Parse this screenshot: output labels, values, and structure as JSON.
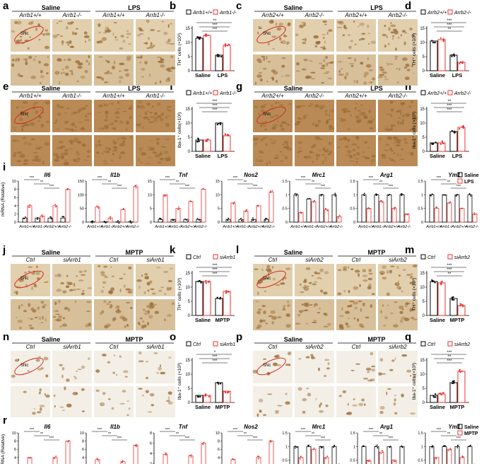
{
  "panel_letters": [
    "a",
    "b",
    "c",
    "d",
    "e",
    "f",
    "g",
    "h",
    "i",
    "j",
    "k",
    "l",
    "m",
    "n",
    "o",
    "p",
    "q",
    "r"
  ],
  "colors": {
    "black": "#000000",
    "red": "#e8302a",
    "tissue_dark": "#9a6c35",
    "tissue_light": "#efe3cf",
    "roi": "#d42a1f"
  },
  "micrograph_panels": {
    "a": {
      "groups": [
        "Saline",
        "LPS"
      ],
      "genotypes": [
        "Arrb1+/+",
        "Arrb1-/-",
        "Arrb1+/+",
        "Arrb1-/-"
      ],
      "roi": "SNc"
    },
    "c": {
      "groups": [
        "Saline",
        "LPS"
      ],
      "genotypes": [
        "Arrb2+/+",
        "Arrb2-/-",
        "Arrb2+/+",
        "Arrb2-/-"
      ],
      "roi": "SNc"
    },
    "e": {
      "groups": [
        "Saline",
        "LPS"
      ],
      "genotypes": [
        "Arrb1+/+",
        "Arrb1-/-",
        "Arrb1+/+",
        "Arrb1-/-"
      ],
      "roi": "SNc"
    },
    "g": {
      "groups": [
        "Saline",
        "LPS"
      ],
      "genotypes": [
        "Arrb2+/+",
        "Arrb2-/-",
        "Arrb2+/+",
        "Arrb2-/-"
      ],
      "roi": "SNc"
    },
    "j": {
      "groups": [
        "Saline",
        "MPTP"
      ],
      "genotypes": [
        "Ctrl",
        "siArrb1",
        "Ctrl",
        "siArrb1"
      ],
      "roi": "SNc"
    },
    "l": {
      "groups": [
        "Saline",
        "MPTP"
      ],
      "genotypes": [
        "Ctrl",
        "siArrb2",
        "Ctrl",
        "siArrb2"
      ],
      "roi": "SNc"
    },
    "n": {
      "groups": [
        "Saline",
        "MPTP"
      ],
      "genotypes": [
        "Ctrl",
        "siArrb1",
        "Ctrl",
        "siArrb1"
      ],
      "roi": "SNc"
    },
    "p": {
      "groups": [
        "Saline",
        "MPTP"
      ],
      "genotypes": [
        "Ctrl",
        "siArrb2",
        "Ctrl",
        "siArrb2"
      ],
      "roi": "SNc"
    }
  },
  "chart_data": [
    {
      "panel": "b",
      "type": "bar",
      "categories": [
        "Saline",
        "LPS"
      ],
      "ylabel": "TH⁺ cells (×10³)",
      "series": [
        {
          "name": "Arrb1+/+",
          "values": [
            11.5,
            5.5
          ]
        },
        {
          "name": "Arrb1-/-",
          "values": [
            12.5,
            9
          ]
        }
      ],
      "sig": [
        "**",
        "***",
        "***"
      ]
    },
    {
      "panel": "d",
      "type": "bar",
      "categories": [
        "Saline",
        "LPS"
      ],
      "ylabel": "TH⁺ cells (×10³)",
      "series": [
        {
          "name": "Arrb2+/+",
          "values": [
            10.5,
            5.5
          ]
        },
        {
          "name": "Arrb2-/-",
          "values": [
            11,
            3
          ]
        }
      ],
      "sig": [
        "***",
        "***",
        "**"
      ]
    },
    {
      "panel": "f",
      "type": "bar",
      "categories": [
        "Saline",
        "LPS"
      ],
      "ylabel": "Iba-1⁺ cells(×10³)",
      "series": [
        {
          "name": "Arrb1+/+",
          "values": [
            4,
            10
          ]
        },
        {
          "name": "Arrb1-/-",
          "values": [
            4,
            5.5
          ]
        }
      ],
      "sig": [
        "***",
        "***",
        "***"
      ]
    },
    {
      "panel": "h",
      "type": "bar",
      "categories": [
        "Saline",
        "LPS"
      ],
      "ylabel": "Iba-1⁺ cells (×10³)",
      "series": [
        {
          "name": "Arrb2+/+",
          "values": [
            3,
            7
          ]
        },
        {
          "name": "Arrb2-/-",
          "values": [
            3,
            8.5
          ]
        }
      ],
      "sig": [
        "**",
        "***",
        "***"
      ]
    },
    {
      "panel": "k",
      "type": "bar",
      "categories": [
        "Saline",
        "MPTP"
      ],
      "ylabel": "TH⁺ cells (×10³)",
      "series": [
        {
          "name": "Ctrl",
          "values": [
            12,
            6
          ]
        },
        {
          "name": "siArrb1",
          "values": [
            12,
            8.5
          ]
        }
      ],
      "sig": [
        "***",
        "***",
        "***"
      ]
    },
    {
      "panel": "m",
      "type": "bar",
      "categories": [
        "Saline",
        "MPTP"
      ],
      "ylabel": "TH⁺ cells (×10³)",
      "series": [
        {
          "name": "Ctrl",
          "values": [
            12,
            6
          ]
        },
        {
          "name": "siArrb2",
          "values": [
            11.5,
            3.5
          ]
        }
      ],
      "sig": [
        "***",
        "***",
        "**"
      ]
    },
    {
      "panel": "o",
      "type": "bar",
      "categories": [
        "Saline",
        "MPTP"
      ],
      "ylabel": "Iba-1⁺ cells (×10³)",
      "series": [
        {
          "name": "Ctrl",
          "values": [
            2.5,
            7
          ]
        },
        {
          "name": "siArrb1",
          "values": [
            2.5,
            4
          ]
        }
      ],
      "sig": [
        "*",
        "***",
        "***"
      ]
    },
    {
      "panel": "q",
      "type": "bar",
      "categories": [
        "Saline",
        "MPTP"
      ],
      "ylabel": "Iba-1⁺ cells (×10³)",
      "series": [
        {
          "name": "Ctrl",
          "values": [
            2.5,
            7
          ]
        },
        {
          "name": "siArrb2",
          "values": [
            3,
            11
          ]
        }
      ],
      "sig": [
        "***",
        "**",
        "***"
      ]
    },
    {
      "panel": "i",
      "type": "bar",
      "ylabel": "mRNA (Relative)",
      "legend": [
        "Saline",
        "LPS"
      ],
      "categories": [
        "Arrb1+/+",
        "Arrb1-/-",
        "Arrb2+/+",
        "Arrb2-/-"
      ],
      "genes": [
        {
          "name": "Il6",
          "ymax": 10,
          "ticks": [
            0,
            2,
            4,
            6,
            8,
            10
          ],
          "saline": [
            1,
            1,
            1,
            1
          ],
          "treated": [
            4,
            1.5,
            4,
            8
          ]
        },
        {
          "name": "Il1b",
          "ymax": 150,
          "ticks": [
            0,
            50,
            100,
            150
          ],
          "saline": [
            1,
            1,
            1,
            1
          ],
          "treated": [
            55,
            15,
            45,
            130
          ]
        },
        {
          "name": "Tnf",
          "ymax": 15,
          "ticks": [
            0,
            5,
            10,
            15
          ],
          "saline": [
            1,
            1,
            1,
            1
          ],
          "treated": [
            10,
            5,
            7.5,
            12
          ]
        },
        {
          "name": "Nos2",
          "ymax": 15,
          "ticks": [
            0,
            5,
            10,
            15
          ],
          "saline": [
            1,
            1,
            1,
            1
          ],
          "treated": [
            7,
            4,
            6,
            11
          ]
        },
        {
          "name": "Mrc1",
          "ymax": 1.5,
          "ticks": [
            0,
            0.5,
            1.0,
            1.5
          ],
          "saline": [
            1,
            0.85,
            1,
            1
          ],
          "treated": [
            0.35,
            0.75,
            0.45,
            0.2
          ]
        },
        {
          "name": "Arg1",
          "ymax": 1.5,
          "ticks": [
            0,
            0.5,
            1.0,
            1.5
          ],
          "saline": [
            1,
            1,
            1,
            1
          ],
          "treated": [
            0.5,
            0.75,
            0.5,
            0.3
          ]
        },
        {
          "name": "Ym1",
          "ymax": 1.5,
          "ticks": [
            0,
            0.5,
            1.0,
            1.5
          ],
          "saline": [
            1,
            1,
            1,
            1
          ],
          "treated": [
            0.5,
            0.7,
            0.5,
            0.3
          ]
        }
      ]
    },
    {
      "panel": "r",
      "type": "bar",
      "ylabel": "mRNA (Relative)",
      "legend": [
        "Saline",
        "MPTP"
      ],
      "categories": [
        "Ctrl",
        "siArrb1",
        "Ctrl",
        "siArrb2"
      ],
      "genes": [
        {
          "name": "Il6",
          "ymax": 10,
          "ticks": [
            0,
            2,
            4,
            6,
            8,
            10
          ],
          "saline": [
            1,
            1,
            1,
            1
          ],
          "treated": [
            4,
            1.5,
            4,
            8
          ]
        },
        {
          "name": "Il1b",
          "ymax": 10,
          "ticks": [
            0,
            2,
            4,
            6,
            8,
            10
          ],
          "saline": [
            1,
            1,
            1,
            1
          ],
          "treated": [
            3.5,
            1.2,
            3,
            7
          ]
        },
        {
          "name": "Tnf",
          "ymax": 8,
          "ticks": [
            0,
            2,
            4,
            6,
            8
          ],
          "saline": [
            1,
            1,
            1,
            1
          ],
          "treated": [
            3.8,
            1.5,
            3.5,
            6
          ]
        },
        {
          "name": "Nos2",
          "ymax": 10,
          "ticks": [
            0,
            2,
            4,
            6,
            8,
            10
          ],
          "saline": [
            1,
            1,
            1,
            1
          ],
          "treated": [
            3.5,
            1.5,
            4,
            8
          ]
        },
        {
          "name": "Mrc1",
          "ymax": 1.5,
          "ticks": [
            0,
            0.5,
            1.0,
            1.5
          ],
          "saline": [
            1,
            1,
            1,
            1
          ],
          "treated": [
            0.6,
            0.9,
            0.6,
            0.35
          ]
        },
        {
          "name": "Arg1",
          "ymax": 1.5,
          "ticks": [
            0,
            0.5,
            1.0,
            1.5
          ],
          "saline": [
            1,
            1,
            1,
            1
          ],
          "treated": [
            0.5,
            0.8,
            0.5,
            0.3
          ]
        },
        {
          "name": "Ym1",
          "ymax": 1.5,
          "ticks": [
            0,
            0.5,
            1.0,
            1.5
          ],
          "saline": [
            1,
            1,
            1,
            1
          ],
          "treated": [
            0.6,
            0.9,
            0.6,
            0.3
          ]
        }
      ]
    }
  ]
}
